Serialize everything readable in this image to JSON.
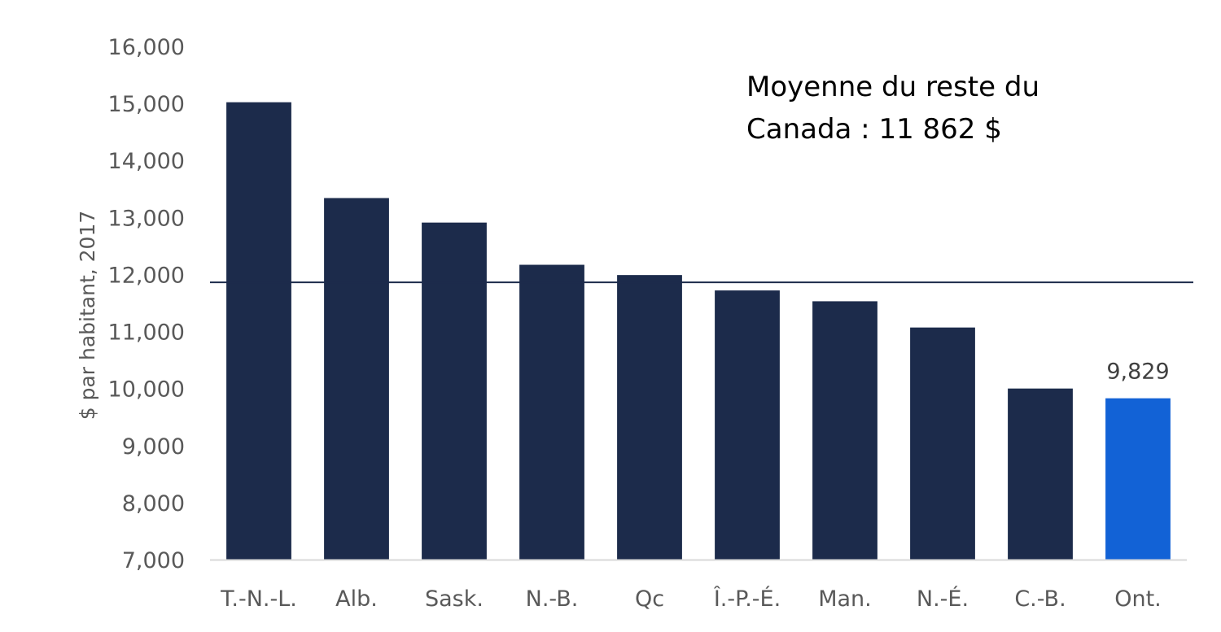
{
  "chart_data": {
    "type": "bar",
    "ylabel": "$ par habitant, 2017",
    "ylim": [
      7000,
      16000
    ],
    "yticks": [
      7000,
      8000,
      9000,
      10000,
      11000,
      12000,
      13000,
      14000,
      15000,
      16000
    ],
    "ytick_labels": [
      "7,000",
      "8,000",
      "9,000",
      "10,000",
      "11,000",
      "12,000",
      "13,000",
      "14,000",
      "15,000",
      "16,000"
    ],
    "categories": [
      "T.-N.-L.",
      "Alb.",
      "Sask.",
      "N.-B.",
      "Qc",
      "Î.-P.-É.",
      "Man.",
      "N.-É.",
      "C.-B.",
      "Ont."
    ],
    "values": [
      15020,
      13340,
      12910,
      12170,
      11990,
      11720,
      11530,
      11070,
      10000,
      9829
    ],
    "bar_colors": [
      "#1c2b4b",
      "#1c2b4b",
      "#1c2b4b",
      "#1c2b4b",
      "#1c2b4b",
      "#1c2b4b",
      "#1c2b4b",
      "#1c2b4b",
      "#1c2b4b",
      "#1262d6"
    ],
    "data_labels": [
      {
        "category": "Ont.",
        "text": "9,829"
      }
    ],
    "reference_line": {
      "value": 11862,
      "color": "#1c2b4b"
    },
    "annotation": {
      "lines": [
        "Moyenne du reste du",
        "Canada : 11 862 $"
      ]
    },
    "grid": false,
    "legend": "none"
  }
}
